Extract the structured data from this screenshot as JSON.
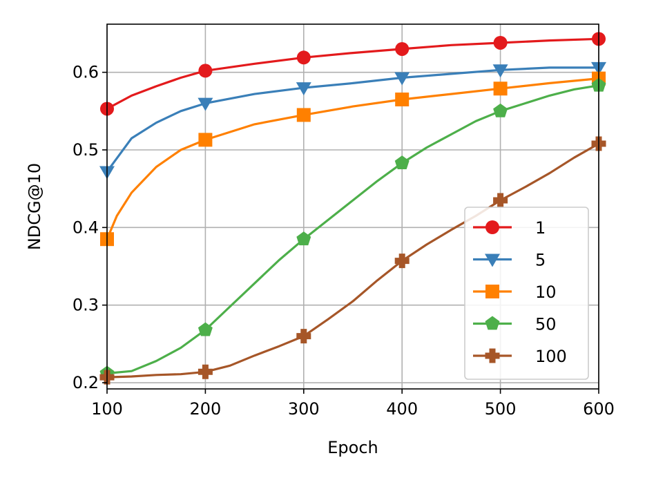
{
  "chart_data": {
    "type": "line",
    "title": "",
    "xlabel": "Epoch",
    "ylabel": "NDCG@10",
    "xlim": [
      100,
      600
    ],
    "ylim": [
      0.192,
      0.662
    ],
    "xticks": [
      100,
      200,
      300,
      400,
      500,
      600
    ],
    "xtick_labels": [
      "100",
      "200",
      "300",
      "400",
      "500",
      "600"
    ],
    "yticks": [
      0.2,
      0.3,
      0.4,
      0.5,
      0.6
    ],
    "ytick_labels": [
      "0.2",
      "0.3",
      "0.4",
      "0.5",
      "0.6"
    ],
    "grid": true,
    "legend_position": "lower-right",
    "series": [
      {
        "name": "1",
        "color": "#e31a1c",
        "marker": "circle",
        "x": [
          100,
          125,
          150,
          175,
          200,
          250,
          300,
          350,
          400,
          450,
          500,
          550,
          600
        ],
        "y": [
          0.553,
          0.57,
          0.582,
          0.593,
          0.602,
          0.611,
          0.619,
          0.625,
          0.63,
          0.635,
          0.638,
          0.641,
          0.643
        ],
        "marker_x": [
          100,
          200,
          300,
          400,
          500,
          600
        ],
        "marker_y": [
          0.553,
          0.602,
          0.619,
          0.63,
          0.638,
          0.643
        ]
      },
      {
        "name": "5",
        "color": "#3a7fb8",
        "marker": "triangle-down",
        "x": [
          100,
          125,
          150,
          175,
          200,
          250,
          300,
          350,
          400,
          450,
          500,
          550,
          600
        ],
        "y": [
          0.472,
          0.515,
          0.535,
          0.55,
          0.56,
          0.572,
          0.58,
          0.586,
          0.593,
          0.598,
          0.603,
          0.606,
          0.606
        ],
        "marker_x": [
          100,
          200,
          300,
          400,
          500,
          600
        ],
        "marker_y": [
          0.472,
          0.56,
          0.58,
          0.593,
          0.603,
          0.606
        ]
      },
      {
        "name": "10",
        "color": "#ff8000",
        "marker": "square",
        "x": [
          100,
          110,
          125,
          150,
          175,
          200,
          250,
          300,
          350,
          400,
          450,
          500,
          550,
          600
        ],
        "y": [
          0.385,
          0.415,
          0.445,
          0.478,
          0.5,
          0.513,
          0.533,
          0.545,
          0.556,
          0.565,
          0.572,
          0.579,
          0.586,
          0.592
        ],
        "marker_x": [
          100,
          200,
          300,
          400,
          500,
          600
        ],
        "marker_y": [
          0.385,
          0.513,
          0.545,
          0.565,
          0.579,
          0.592
        ]
      },
      {
        "name": "50",
        "color": "#4daf4a",
        "marker": "pentagon",
        "x": [
          100,
          125,
          150,
          175,
          200,
          225,
          250,
          275,
          300,
          325,
          350,
          375,
          400,
          425,
          450,
          475,
          500,
          525,
          550,
          575,
          600
        ],
        "y": [
          0.212,
          0.215,
          0.228,
          0.245,
          0.268,
          0.298,
          0.328,
          0.358,
          0.385,
          0.41,
          0.435,
          0.46,
          0.483,
          0.503,
          0.52,
          0.537,
          0.55,
          0.56,
          0.57,
          0.578,
          0.583
        ],
        "marker_x": [
          100,
          200,
          300,
          400,
          500,
          600
        ],
        "marker_y": [
          0.212,
          0.268,
          0.385,
          0.483,
          0.55,
          0.583
        ]
      },
      {
        "name": "100",
        "color": "#a65628",
        "marker": "plus-filled",
        "x": [
          100,
          125,
          150,
          175,
          200,
          225,
          250,
          275,
          300,
          325,
          350,
          375,
          400,
          425,
          450,
          475,
          500,
          525,
          550,
          575,
          600
        ],
        "y": [
          0.207,
          0.208,
          0.21,
          0.211,
          0.214,
          0.222,
          0.235,
          0.247,
          0.26,
          0.282,
          0.305,
          0.332,
          0.357,
          0.378,
          0.397,
          0.415,
          0.435,
          0.452,
          0.47,
          0.49,
          0.508
        ],
        "marker_x": [
          100,
          200,
          300,
          400,
          500,
          600
        ],
        "marker_y": [
          0.207,
          0.214,
          0.26,
          0.357,
          0.435,
          0.508
        ]
      }
    ]
  }
}
